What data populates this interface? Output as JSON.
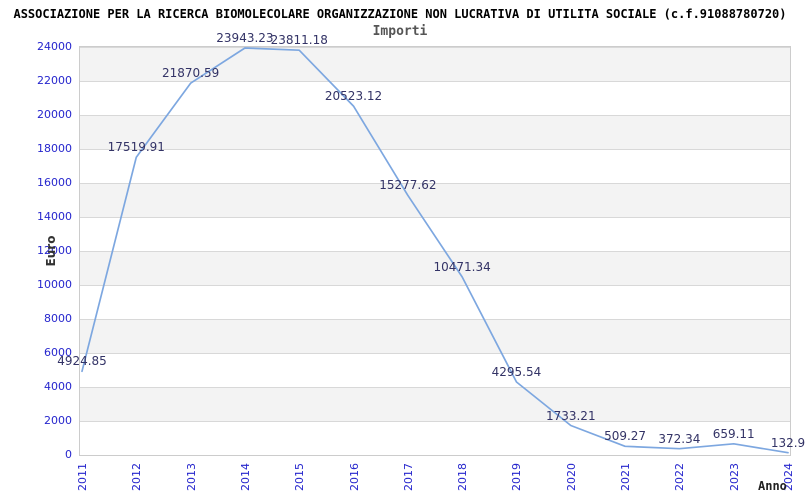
{
  "header": {
    "title": "ASSOCIAZIONE PER LA RICERCA BIOMOLECOLARE ORGANIZZAZIONE NON LUCRATIVA DI UTILITA SOCIALE (c.f.91088780720)"
  },
  "chart_data": {
    "type": "line",
    "title": "Importi",
    "xlabel": "Anno",
    "ylabel": "Euro",
    "categories": [
      "2011",
      "2012",
      "2013",
      "2014",
      "2015",
      "2016",
      "2017",
      "2018",
      "2019",
      "2020",
      "2021",
      "2022",
      "2023",
      "2024"
    ],
    "series": [
      {
        "name": "Importi",
        "values": [
          4924.85,
          17519.91,
          21870.59,
          23943.23,
          23811.18,
          20523.12,
          15277.62,
          10471.34,
          4295.54,
          1733.21,
          509.27,
          372.34,
          659.11,
          132.9
        ]
      }
    ],
    "point_labels": [
      "4924.85",
      "17519.91",
      "21870.59",
      "23943.23",
      "23811.18",
      "20523.12",
      "15277.62",
      "10471.34",
      "4295.54",
      "1733.21",
      "509.27",
      "372.34",
      "659.11",
      "132.9"
    ],
    "ylim": [
      0,
      24000
    ],
    "ytick_step": 2000,
    "grid": true,
    "legend_position": "none",
    "colors": {
      "line": "#7da7e0",
      "tick_label": "#2626cd",
      "point_label": "#333366",
      "band": "#f3f3f3",
      "grid_line": "#d8d8d8",
      "plot_border": "#cccccc",
      "title": "#000000",
      "subtitle": "#555555",
      "axis_label": "#333333"
    }
  }
}
